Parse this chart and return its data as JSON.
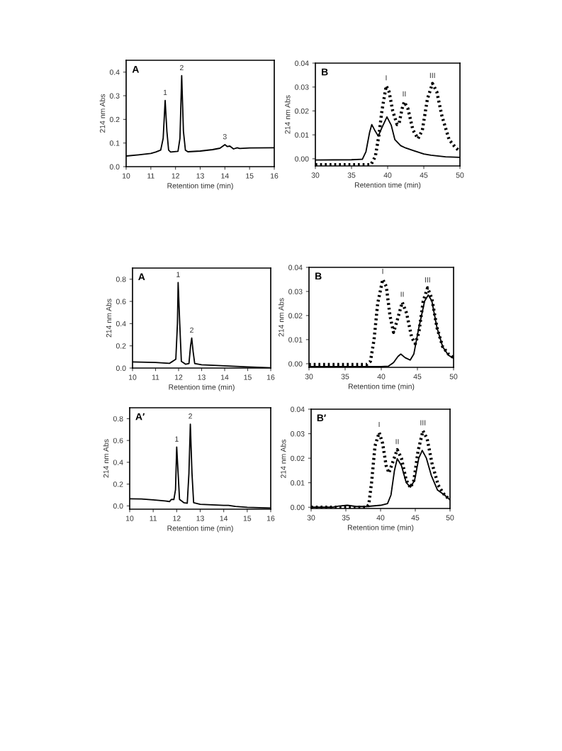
{
  "chart_data": [
    {
      "type": "line",
      "title": "A",
      "xlabel": "Retention time (min)",
      "ylabel": "214 nm Abs",
      "xlim": [
        10,
        16
      ],
      "xticks": [
        10,
        11,
        12,
        13,
        14,
        15,
        16
      ],
      "ylim": [
        0,
        0.45
      ],
      "yticks": [
        {
          "value": 0,
          "label": "0.0"
        },
        {
          "value": 0.1,
          "label": "0.1"
        },
        {
          "value": 0.2,
          "label": "0.2"
        },
        {
          "value": 0.3,
          "label": "0.3"
        },
        {
          "value": 0.4,
          "label": "0.4"
        }
      ],
      "grid": false,
      "marker": "none",
      "series": [
        {
          "color": "#000000",
          "line_style": "solid",
          "x": [
            10,
            10.5,
            11,
            11.2,
            11.4,
            11.5,
            11.58,
            11.65,
            11.72,
            11.8,
            12.1,
            12.18,
            12.25,
            12.32,
            12.4,
            12.5,
            13,
            13.5,
            13.8,
            14.0,
            14.1,
            14.2,
            14.35,
            14.5,
            14.6,
            15,
            16
          ],
          "values": [
            0.045,
            0.05,
            0.056,
            0.062,
            0.07,
            0.12,
            0.28,
            0.15,
            0.07,
            0.062,
            0.065,
            0.12,
            0.385,
            0.15,
            0.07,
            0.063,
            0.066,
            0.072,
            0.078,
            0.093,
            0.085,
            0.087,
            0.075,
            0.08,
            0.077,
            0.079,
            0.08
          ]
        }
      ],
      "annotations": [
        {
          "text": "1",
          "x": 11.58,
          "y": 0.28
        },
        {
          "text": "2",
          "x": 12.25,
          "y": 0.385
        },
        {
          "text": "3",
          "x": 14.0,
          "y": 0.093
        }
      ]
    },
    {
      "type": "line",
      "title": "B",
      "xlabel": "Retention time (min)",
      "ylabel": "214 nm Abs",
      "xlim": [
        30,
        50
      ],
      "xticks": [
        30,
        35,
        40,
        45,
        50
      ],
      "ylim": [
        -0.003,
        0.04
      ],
      "yticks": [
        {
          "value": 0,
          "label": "0.00"
        },
        {
          "value": 0.01,
          "label": "0.01"
        },
        {
          "value": 0.02,
          "label": "0.02"
        },
        {
          "value": 0.03,
          "label": "0.03"
        },
        {
          "value": 0.04,
          "label": "0.04"
        }
      ],
      "grid": false,
      "marker": "none",
      "series": [
        {
          "color": "#000000",
          "line_style": "solid",
          "x": [
            30,
            35,
            36.5,
            37,
            37.5,
            37.8,
            38.2,
            38.7,
            39.2,
            39.9,
            40.5,
            41,
            41.8,
            42.5,
            43.5,
            45,
            46,
            48,
            50
          ],
          "values": [
            -0.0005,
            -0.0004,
            -0.0002,
            0.003,
            0.011,
            0.0143,
            0.012,
            0.0095,
            0.013,
            0.0175,
            0.014,
            0.008,
            0.0055,
            0.0045,
            0.0035,
            0.002,
            0.0015,
            0.0008,
            0.0006
          ]
        },
        {
          "color": "#000000",
          "line_style": "dotted",
          "x": [
            30,
            37,
            37.7,
            38.3,
            38.8,
            39.2,
            39.8,
            40.2,
            40.7,
            41.3,
            41.6,
            42,
            42.3,
            42.8,
            43.5,
            44.2,
            44.8,
            45.5,
            46.2,
            46.8,
            47.5,
            48.5,
            49.3,
            50
          ],
          "values": [
            -0.0025,
            -0.0025,
            -0.0024,
            0.001,
            0.01,
            0.02,
            0.0305,
            0.028,
            0.02,
            0.0143,
            0.015,
            0.021,
            0.0238,
            0.021,
            0.012,
            0.0084,
            0.012,
            0.025,
            0.0315,
            0.028,
            0.018,
            0.008,
            0.005,
            0.003
          ]
        }
      ],
      "annotations": [
        {
          "text": "I",
          "x": 39.8,
          "y": 0.0305
        },
        {
          "text": "II",
          "x": 42.3,
          "y": 0.0238
        },
        {
          "text": "III",
          "x": 46.2,
          "y": 0.0315
        }
      ]
    },
    {
      "type": "line",
      "title": "A",
      "xlabel": "Retention time (min)",
      "ylabel": "214 nm Abs",
      "xlim": [
        10,
        16
      ],
      "xticks": [
        10,
        11,
        12,
        13,
        14,
        15,
        16
      ],
      "ylim": [
        0,
        0.9
      ],
      "yticks": [
        {
          "value": 0,
          "label": "0.0"
        },
        {
          "value": 0.2,
          "label": "0.2"
        },
        {
          "value": 0.4,
          "label": "0.4"
        },
        {
          "value": 0.6,
          "label": "0.6"
        },
        {
          "value": 0.8,
          "label": "0.8"
        }
      ],
      "grid": false,
      "marker": "none",
      "series": [
        {
          "color": "#000000",
          "line_style": "solid",
          "x": [
            10,
            11,
            11.6,
            11.7,
            11.8,
            11.88,
            11.95,
            11.98,
            12.05,
            12.12,
            12.3,
            12.45,
            12.52,
            12.57,
            12.63,
            12.7,
            13,
            14,
            15,
            16
          ],
          "values": [
            0.055,
            0.05,
            0.042,
            0.055,
            0.068,
            0.08,
            0.4,
            0.77,
            0.4,
            0.06,
            0.035,
            0.04,
            0.2,
            0.27,
            0.15,
            0.04,
            0.03,
            0.02,
            0.01,
            0.002
          ]
        }
      ],
      "annotations": [
        {
          "text": "1",
          "x": 11.98,
          "y": 0.77
        },
        {
          "text": "2",
          "x": 12.57,
          "y": 0.27
        }
      ]
    },
    {
      "type": "line",
      "title": "B",
      "xlabel": "Retention time (min)",
      "ylabel": "214 nm Abs",
      "xlim": [
        30,
        50
      ],
      "xticks": [
        30,
        35,
        40,
        45,
        50
      ],
      "ylim": [
        -0.0015,
        0.04
      ],
      "yticks": [
        {
          "value": 0,
          "label": "0.00"
        },
        {
          "value": 0.01,
          "label": "0.01"
        },
        {
          "value": 0.02,
          "label": "0.02"
        },
        {
          "value": 0.03,
          "label": "0.03"
        },
        {
          "value": 0.04,
          "label": "0.04"
        }
      ],
      "grid": false,
      "marker": "none",
      "series": [
        {
          "color": "#000000",
          "line_style": "solid",
          "x": [
            30,
            40,
            41,
            41.7,
            42.3,
            42.7,
            43.3,
            44,
            44.5,
            45.2,
            46,
            46.5,
            47,
            47.7,
            48.5,
            49.3,
            50
          ],
          "values": [
            -0.0012,
            -0.0012,
            -0.001,
            0.0005,
            0.003,
            0.004,
            0.0025,
            0.0015,
            0.004,
            0.015,
            0.026,
            0.0285,
            0.026,
            0.015,
            0.007,
            0.0035,
            0.0023
          ]
        },
        {
          "color": "#000000",
          "line_style": "dotted",
          "x": [
            30,
            38,
            38.5,
            39,
            39.5,
            40.2,
            40.7,
            41.2,
            41.7,
            42.2,
            42.9,
            43.5,
            44.2,
            44.7,
            45.2,
            45.8,
            46.4,
            47,
            47.7,
            48.5,
            49.3,
            50
          ],
          "values": [
            -0.0003,
            -0.0003,
            0.001,
            0.01,
            0.025,
            0.035,
            0.032,
            0.02,
            0.013,
            0.018,
            0.0255,
            0.021,
            0.011,
            0.0083,
            0.013,
            0.026,
            0.0315,
            0.027,
            0.015,
            0.007,
            0.004,
            0.0025
          ]
        }
      ],
      "annotations": [
        {
          "text": "I",
          "x": 40.2,
          "y": 0.035
        },
        {
          "text": "II",
          "x": 42.9,
          "y": 0.0255
        },
        {
          "text": "III",
          "x": 46.4,
          "y": 0.0315
        }
      ]
    },
    {
      "type": "line",
      "title": "A′",
      "xlabel": "Retention time (min)",
      "ylabel": "214 nm Abs",
      "xlim": [
        10,
        16
      ],
      "xticks": [
        10,
        11,
        12,
        13,
        14,
        15,
        16
      ],
      "ylim": [
        -0.03,
        0.9
      ],
      "yticks": [
        {
          "value": 0,
          "label": "0.0"
        },
        {
          "value": 0.2,
          "label": "0.2"
        },
        {
          "value": 0.4,
          "label": "0.4"
        },
        {
          "value": 0.6,
          "label": "0.6"
        },
        {
          "value": 0.8,
          "label": "0.8"
        }
      ],
      "grid": false,
      "marker": "none",
      "series": [
        {
          "color": "#000000",
          "line_style": "solid",
          "x": [
            10,
            10.5,
            11,
            11.5,
            11.7,
            11.75,
            11.8,
            11.88,
            11.95,
            12.0,
            12.06,
            12.12,
            12.3,
            12.45,
            12.52,
            12.58,
            12.65,
            12.72,
            13,
            14,
            14.2,
            14.5,
            15,
            16
          ],
          "values": [
            0.065,
            0.063,
            0.055,
            0.045,
            0.04,
            0.055,
            0.06,
            0.058,
            0.15,
            0.54,
            0.3,
            0.06,
            0.03,
            0.025,
            0.3,
            0.75,
            0.3,
            0.03,
            0.015,
            0.005,
            0.005,
            -0.005,
            -0.013,
            -0.02
          ]
        }
      ],
      "annotations": [
        {
          "text": "1",
          "x": 12.0,
          "y": 0.54
        },
        {
          "text": "2",
          "x": 12.58,
          "y": 0.75
        }
      ]
    },
    {
      "type": "line",
      "title": "B′",
      "xlabel": "Retention time (min)",
      "ylabel": "214 nm Abs",
      "xlim": [
        30,
        50
      ],
      "xticks": [
        30,
        35,
        40,
        45,
        50
      ],
      "ylim": [
        -0.0005,
        0.04
      ],
      "yticks": [
        {
          "value": 0,
          "label": "0.00"
        },
        {
          "value": 0.01,
          "label": "0.01"
        },
        {
          "value": 0.02,
          "label": "0.02"
        },
        {
          "value": 0.03,
          "label": "0.03"
        },
        {
          "value": 0.04,
          "label": "0.04"
        }
      ],
      "grid": false,
      "marker": "none",
      "series": [
        {
          "color": "#000000",
          "line_style": "solid",
          "x": [
            30,
            33,
            34,
            35.2,
            36.5,
            38,
            40,
            41,
            41.5,
            42,
            42.4,
            43,
            43.7,
            44.3,
            44.9,
            45.5,
            46,
            46.6,
            47.3,
            48.2,
            49.2,
            50
          ],
          "values": [
            0,
            0,
            0.0005,
            0.0008,
            0.0003,
            0.0003,
            0.0008,
            0.0015,
            0.005,
            0.015,
            0.0198,
            0.017,
            0.01,
            0.0082,
            0.011,
            0.02,
            0.0232,
            0.02,
            0.013,
            0.007,
            0.005,
            0.003
          ]
        },
        {
          "color": "#000000",
          "line_style": "dotted",
          "x": [
            30,
            38,
            38.3,
            38.7,
            39.2,
            39.8,
            40.3,
            40.8,
            41.2,
            41.7,
            42.4,
            43,
            43.7,
            44.3,
            44.8,
            45.4,
            46.1,
            46.7,
            47.4,
            48.3,
            49.2,
            50
          ],
          "values": [
            0,
            0,
            0.001,
            0.01,
            0.025,
            0.0305,
            0.026,
            0.017,
            0.014,
            0.018,
            0.0235,
            0.02,
            0.011,
            0.008,
            0.011,
            0.023,
            0.0312,
            0.028,
            0.018,
            0.009,
            0.005,
            0.003
          ]
        }
      ],
      "annotations": [
        {
          "text": "I",
          "x": 39.8,
          "y": 0.0305
        },
        {
          "text": "II",
          "x": 42.4,
          "y": 0.0235
        },
        {
          "text": "III",
          "x": 46.1,
          "y": 0.0312
        }
      ]
    }
  ]
}
